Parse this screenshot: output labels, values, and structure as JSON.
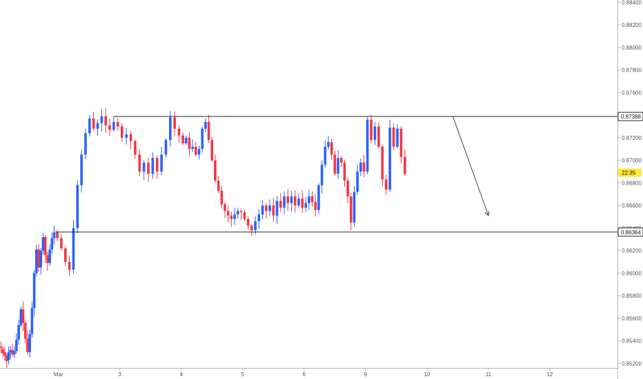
{
  "chart_data": {
    "type": "candlestick",
    "title": "",
    "xlabel": "",
    "ylabel": "",
    "x_ticks": [
      {
        "label": "Mar",
        "x": 0
      },
      {
        "label": "3",
        "x": 1
      },
      {
        "label": "4",
        "x": 2
      },
      {
        "label": "5",
        "x": 3
      },
      {
        "label": "6",
        "x": 4
      },
      {
        "label": "9",
        "x": 5
      },
      {
        "label": "10",
        "x": 6
      },
      {
        "label": "11",
        "x": 7
      },
      {
        "label": "12",
        "x": 8
      }
    ],
    "xlim": [
      -0.95,
      9.1
    ],
    "ylim": [
      0.8516,
      0.8842
    ],
    "y_ticks": [
      0.852,
      0.854,
      0.856,
      0.858,
      0.86,
      0.862,
      0.864,
      0.866,
      0.868,
      0.87,
      0.872,
      0.874,
      0.876,
      0.878,
      0.88,
      0.882,
      0.884
    ],
    "y_tick_labels": [
      "0.85200",
      "0.85400",
      "0.85600",
      "0.85800",
      "0.86000",
      "0.86200",
      "0.86400",
      "0.86600",
      "0.86800",
      "0.87000",
      "0.87200",
      "0.87400",
      "0.87600",
      "0.87800",
      "0.88000",
      "0.88200",
      "0.88400"
    ],
    "grid": false,
    "colors": {
      "up": "#2962ff",
      "down": "#f23645",
      "line": "#222222",
      "arrow": "#444444",
      "countdown": "#ffeb3b"
    },
    "horizontal_levels": [
      {
        "price": 0.87388,
        "label": "0.87388",
        "x_start": 0.9
      },
      {
        "price": 0.86364,
        "label": "0.86364",
        "x_start": -0.05
      }
    ],
    "countdown": {
      "price": 0.8689,
      "label": "22:35"
    },
    "projection_arrow": {
      "from": {
        "x": 6.42,
        "y": 0.8739
      },
      "to": {
        "x": 7.0,
        "y": 0.8651
      }
    },
    "segments": [
      {
        "x0": -0.95,
        "x1": -0.7,
        "path": [
          [
            0.8535,
            0.8534
          ],
          [
            0.8533,
            0.8529
          ],
          [
            0.853,
            0.8527
          ],
          [
            0.8527,
            0.8522
          ],
          [
            0.8523,
            0.853
          ],
          [
            0.853,
            0.8532
          ],
          [
            0.8532,
            0.8528
          ],
          [
            0.8528,
            0.8531
          ]
        ]
      },
      {
        "x0": -0.7,
        "x1": -0.05,
        "path": [
          [
            0.8531,
            0.8541
          ],
          [
            0.8541,
            0.8554
          ],
          [
            0.8554,
            0.8568
          ],
          [
            0.8568,
            0.8556
          ],
          [
            0.8556,
            0.8542
          ],
          [
            0.8542,
            0.853
          ],
          [
            0.853,
            0.8546
          ],
          [
            0.8546,
            0.8569
          ],
          [
            0.8569,
            0.86
          ],
          [
            0.86,
            0.8621
          ],
          [
            0.8621,
            0.8605
          ],
          [
            0.8605,
            0.862
          ],
          [
            0.862,
            0.8632
          ],
          [
            0.8632,
            0.8616
          ],
          [
            0.8616,
            0.8609
          ],
          [
            0.8609,
            0.8621
          ],
          [
            0.8621,
            0.8631
          ],
          [
            0.8631,
            0.8636
          ]
        ]
      },
      {
        "x0": -0.05,
        "x1": 1.0,
        "path": [
          [
            0.8636,
            0.8631
          ],
          [
            0.8631,
            0.8622
          ],
          [
            0.8622,
            0.861
          ],
          [
            0.861,
            0.8603
          ],
          [
            0.8603,
            0.864
          ],
          [
            0.864,
            0.8678
          ],
          [
            0.8678,
            0.8705
          ],
          [
            0.8705,
            0.8724
          ],
          [
            0.8724,
            0.8737
          ],
          [
            0.8737,
            0.8728
          ],
          [
            0.8728,
            0.8733
          ],
          [
            0.8733,
            0.8739
          ],
          [
            0.8739,
            0.8731
          ],
          [
            0.8731,
            0.8727
          ],
          [
            0.8727,
            0.8734
          ],
          [
            0.8734,
            0.873
          ]
        ]
      },
      {
        "x0": 1.0,
        "x1": 2.0,
        "path": [
          [
            0.873,
            0.872
          ],
          [
            0.872,
            0.8723
          ],
          [
            0.8723,
            0.8717
          ],
          [
            0.8717,
            0.8705
          ],
          [
            0.8705,
            0.869
          ],
          [
            0.869,
            0.8698
          ],
          [
            0.8698,
            0.8688
          ],
          [
            0.8688,
            0.8702
          ],
          [
            0.8702,
            0.869
          ],
          [
            0.869,
            0.8705
          ],
          [
            0.8705,
            0.8718
          ],
          [
            0.8718,
            0.8738
          ],
          [
            0.8738,
            0.8728
          ],
          [
            0.8728,
            0.8722
          ]
        ]
      },
      {
        "x0": 2.0,
        "x1": 3.0,
        "path": [
          [
            0.8722,
            0.8715
          ],
          [
            0.8715,
            0.872
          ],
          [
            0.872,
            0.871
          ],
          [
            0.871,
            0.8712
          ],
          [
            0.8712,
            0.8705
          ],
          [
            0.8705,
            0.871
          ],
          [
            0.871,
            0.8728
          ],
          [
            0.8728,
            0.8734
          ],
          [
            0.8734,
            0.8718
          ],
          [
            0.8718,
            0.87
          ],
          [
            0.87,
            0.8682
          ],
          [
            0.8682,
            0.8673
          ],
          [
            0.8673,
            0.8661
          ],
          [
            0.8661,
            0.8655
          ],
          [
            0.8655,
            0.8651
          ],
          [
            0.8651,
            0.8648
          ],
          [
            0.8648,
            0.8652
          ],
          [
            0.8652,
            0.8655
          ],
          [
            0.8655,
            0.8654
          ]
        ]
      },
      {
        "x0": 3.0,
        "x1": 4.0,
        "path": [
          [
            0.8654,
            0.8648
          ],
          [
            0.8648,
            0.8642
          ],
          [
            0.8642,
            0.8638
          ],
          [
            0.8638,
            0.8646
          ],
          [
            0.8646,
            0.8652
          ],
          [
            0.8652,
            0.866
          ],
          [
            0.866,
            0.8655
          ],
          [
            0.8655,
            0.866
          ],
          [
            0.866,
            0.8651
          ],
          [
            0.8651,
            0.8664
          ],
          [
            0.8664,
            0.8658
          ],
          [
            0.8658,
            0.8668
          ],
          [
            0.8668,
            0.8662
          ],
          [
            0.8662,
            0.8668
          ],
          [
            0.8668,
            0.866
          ],
          [
            0.866,
            0.8666
          ],
          [
            0.8666,
            0.8658
          ]
        ]
      },
      {
        "x0": 4.0,
        "x1": 5.0,
        "path": [
          [
            0.8658,
            0.8662
          ],
          [
            0.8662,
            0.8668
          ],
          [
            0.8668,
            0.8663
          ],
          [
            0.8663,
            0.8656
          ],
          [
            0.8656,
            0.8678
          ],
          [
            0.8678,
            0.8696
          ],
          [
            0.8696,
            0.8712
          ],
          [
            0.8712,
            0.8716
          ],
          [
            0.8716,
            0.8705
          ],
          [
            0.8705,
            0.8688
          ],
          [
            0.8688,
            0.8702
          ],
          [
            0.8702,
            0.8698
          ],
          [
            0.8698,
            0.8682
          ],
          [
            0.8682,
            0.8668
          ],
          [
            0.8668,
            0.8645
          ],
          [
            0.8645,
            0.8672
          ],
          [
            0.8672,
            0.869
          ],
          [
            0.869,
            0.8698
          ],
          [
            0.8698,
            0.869
          ]
        ]
      },
      {
        "x0": 5.0,
        "x1": 5.67,
        "path": [
          [
            0.869,
            0.8736
          ],
          [
            0.8736,
            0.8718
          ],
          [
            0.8718,
            0.873
          ],
          [
            0.873,
            0.8712
          ],
          [
            0.8712,
            0.8683
          ],
          [
            0.8683,
            0.8674
          ],
          [
            0.8674,
            0.8729
          ],
          [
            0.8729,
            0.8712
          ],
          [
            0.8712,
            0.8728
          ],
          [
            0.8728,
            0.8703
          ],
          [
            0.8703,
            0.8688
          ]
        ]
      }
    ]
  }
}
